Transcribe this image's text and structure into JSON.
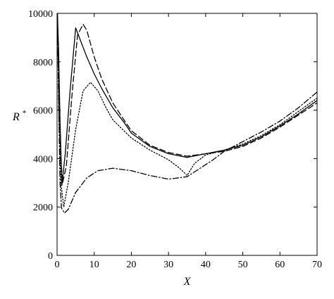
{
  "chart_data": {
    "type": "line",
    "xlabel": "X",
    "ylabel": "R",
    "ylabel_superscript": "*",
    "xlim": [
      0,
      70
    ],
    "ylim": [
      0,
      10000
    ],
    "x_ticks": [
      0,
      10,
      20,
      30,
      40,
      50,
      60,
      70
    ],
    "y_ticks": [
      0,
      2000,
      4000,
      6000,
      8000,
      10000
    ],
    "x_tick_labels": [
      "0",
      "10",
      "20",
      "30",
      "40",
      "50",
      "60",
      "70"
    ],
    "y_tick_labels": [
      "0",
      "2000",
      "4000",
      "6000",
      "8000",
      "10000"
    ],
    "grid": false,
    "legend": "none",
    "series": [
      {
        "style": "solid",
        "color": "#000000",
        "points": [
          [
            0.1,
            10000
          ],
          [
            0.4,
            8500
          ],
          [
            0.8,
            5500
          ],
          [
            1.3,
            2900
          ],
          [
            2.2,
            4200
          ],
          [
            3.5,
            6800
          ],
          [
            5,
            9400
          ],
          [
            6,
            9000
          ],
          [
            8,
            8200
          ],
          [
            10,
            7500
          ],
          [
            12,
            6900
          ],
          [
            15,
            6100
          ],
          [
            18,
            5500
          ],
          [
            20,
            5050
          ],
          [
            25,
            4500
          ],
          [
            30,
            4200
          ],
          [
            35,
            4050
          ],
          [
            40,
            4200
          ],
          [
            45,
            4350
          ],
          [
            50,
            4550
          ],
          [
            55,
            4900
          ],
          [
            60,
            5350
          ],
          [
            65,
            5850
          ],
          [
            70,
            6400
          ]
        ]
      },
      {
        "style": "dashed",
        "color": "#000000",
        "points": [
          [
            0.1,
            9600
          ],
          [
            0.5,
            7000
          ],
          [
            1.0,
            4000
          ],
          [
            1.5,
            3000
          ],
          [
            2.5,
            3700
          ],
          [
            4,
            6600
          ],
          [
            5.5,
            9100
          ],
          [
            7,
            9550
          ],
          [
            8,
            9300
          ],
          [
            10,
            8200
          ],
          [
            12,
            7300
          ],
          [
            15,
            6300
          ],
          [
            18,
            5600
          ],
          [
            20,
            5150
          ],
          [
            25,
            4550
          ],
          [
            30,
            4250
          ],
          [
            35,
            4100
          ],
          [
            40,
            4200
          ],
          [
            45,
            4300
          ],
          [
            50,
            4500
          ],
          [
            55,
            4850
          ],
          [
            60,
            5300
          ],
          [
            65,
            5800
          ],
          [
            70,
            6300
          ]
        ]
      },
      {
        "style": "dotted",
        "color": "#000000",
        "points": [
          [
            0.1,
            10000
          ],
          [
            0.5,
            6000
          ],
          [
            1.0,
            3000
          ],
          [
            1.8,
            2000
          ],
          [
            3,
            3000
          ],
          [
            5,
            5200
          ],
          [
            7,
            6800
          ],
          [
            9,
            7150
          ],
          [
            11,
            6800
          ],
          [
            13,
            6150
          ],
          [
            15,
            5600
          ],
          [
            20,
            4850
          ],
          [
            25,
            4350
          ],
          [
            30,
            3950
          ],
          [
            33,
            3600
          ],
          [
            35,
            3300
          ],
          [
            37,
            3800
          ],
          [
            40,
            4150
          ],
          [
            45,
            4350
          ],
          [
            50,
            4600
          ],
          [
            55,
            4950
          ],
          [
            60,
            5400
          ],
          [
            65,
            5950
          ],
          [
            70,
            6500
          ]
        ]
      },
      {
        "style": "dashdot",
        "color": "#000000",
        "points": [
          [
            0.1,
            9800
          ],
          [
            0.4,
            6500
          ],
          [
            0.8,
            3000
          ],
          [
            1.2,
            1950
          ],
          [
            2,
            1750
          ],
          [
            3,
            1900
          ],
          [
            5,
            2600
          ],
          [
            8,
            3200
          ],
          [
            11,
            3500
          ],
          [
            15,
            3600
          ],
          [
            20,
            3500
          ],
          [
            25,
            3300
          ],
          [
            30,
            3150
          ],
          [
            35,
            3250
          ],
          [
            38,
            3550
          ],
          [
            42,
            3950
          ],
          [
            45,
            4300
          ],
          [
            50,
            4700
          ],
          [
            55,
            5100
          ],
          [
            60,
            5550
          ],
          [
            65,
            6100
          ],
          [
            70,
            6750
          ]
        ]
      }
    ]
  }
}
